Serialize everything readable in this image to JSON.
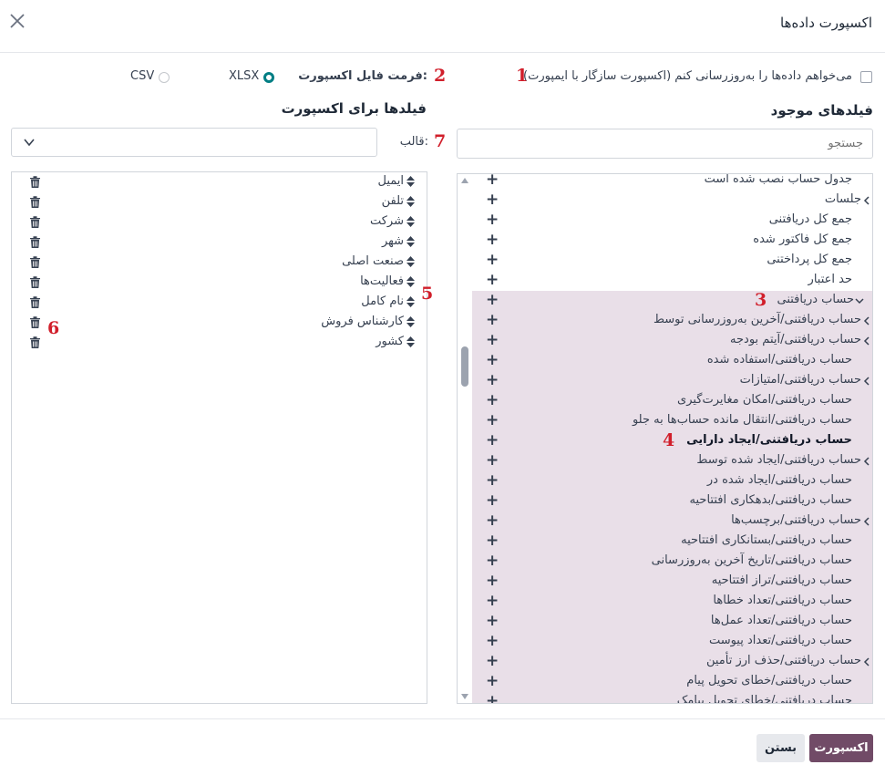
{
  "dialog": {
    "title": "اکسپورت داده‌ها"
  },
  "options": {
    "update_checkbox_label": "می‌خواهم داده‌ها را به‌روزرسانی کنم (اکسپورت سازگار با ایمپورت)",
    "format_label": "فرمت فایل اکسپورت:",
    "xlsx": "XLSX",
    "csv": "CSV"
  },
  "annotations": {
    "n1": "1",
    "n2": "2",
    "n3": "3",
    "n4": "4",
    "n5": "5",
    "n6": "6",
    "n7": "7"
  },
  "available": {
    "heading": "فیلدهای موجود",
    "search_placeholder": "جستجو",
    "rows": [
      {
        "label": "جدول حساب نصب شده است",
        "plus": "+",
        "chevron": false,
        "hl": false,
        "bold": false
      },
      {
        "label": "جلسات",
        "plus": "+",
        "chevron": "right",
        "hl": false,
        "bold": false
      },
      {
        "label": "جمع کل دریافتنی",
        "plus": "+",
        "chevron": false,
        "hl": false,
        "bold": false
      },
      {
        "label": "جمع کل فاکتور شده",
        "plus": "+",
        "chevron": false,
        "hl": false,
        "bold": false
      },
      {
        "label": "جمع کل پرداختنی",
        "plus": "+",
        "chevron": false,
        "hl": false,
        "bold": false
      },
      {
        "label": "حد اعتبار",
        "plus": "+",
        "chevron": false,
        "hl": false,
        "bold": false
      },
      {
        "label": "حساب دریافتنی",
        "plus": "+",
        "chevron": "down",
        "hl": true,
        "bold": false
      },
      {
        "label": "حساب دریافتنی/آخرین به‌روزرسانی توسط",
        "plus": "+",
        "chevron": "right",
        "hl": true,
        "bold": false
      },
      {
        "label": "حساب دریافتنی/آیتم بودجه",
        "plus": "+",
        "chevron": "right",
        "hl": true,
        "bold": false
      },
      {
        "label": "حساب دریافتنی/استفاده شده",
        "plus": "+",
        "chevron": false,
        "hl": true,
        "bold": false
      },
      {
        "label": "حساب دریافتنی/امتیازات",
        "plus": "+",
        "chevron": "right",
        "hl": true,
        "bold": false
      },
      {
        "label": "حساب دریافتنی/امکان مغایرت‌گیری",
        "plus": "+",
        "chevron": false,
        "hl": true,
        "bold": false
      },
      {
        "label": "حساب دریافتنی/انتقال مانده حساب‌ها به جلو",
        "plus": "+",
        "chevron": false,
        "hl": true,
        "bold": false
      },
      {
        "label": "حساب دریافتنی/ایجاد دارایی",
        "plus": "+",
        "chevron": false,
        "hl": true,
        "bold": true
      },
      {
        "label": "حساب دریافتنی/ایجاد شده توسط",
        "plus": "+",
        "chevron": "right",
        "hl": true,
        "bold": false
      },
      {
        "label": "حساب دریافتنی/ایجاد شده در",
        "plus": "+",
        "chevron": false,
        "hl": true,
        "bold": false
      },
      {
        "label": "حساب دریافتنی/بدهکاری افتتاحیه",
        "plus": "+",
        "chevron": false,
        "hl": true,
        "bold": false
      },
      {
        "label": "حساب دریافتنی/برچسب‌ها",
        "plus": "+",
        "chevron": "right",
        "hl": true,
        "bold": false
      },
      {
        "label": "حساب دریافتنی/بستانکاری افتتاحیه",
        "plus": "+",
        "chevron": false,
        "hl": true,
        "bold": false
      },
      {
        "label": "حساب دریافتنی/تاریخ آخرین به‌روزرسانی",
        "plus": "+",
        "chevron": false,
        "hl": true,
        "bold": false
      },
      {
        "label": "حساب دریافتنی/تراز افتتاحیه",
        "plus": "+",
        "chevron": false,
        "hl": true,
        "bold": false
      },
      {
        "label": "حساب دریافتنی/تعداد خطاها",
        "plus": "+",
        "chevron": false,
        "hl": true,
        "bold": false
      },
      {
        "label": "حساب دریافتنی/تعداد عمل‌ها",
        "plus": "+",
        "chevron": false,
        "hl": true,
        "bold": false
      },
      {
        "label": "حساب دریافتنی/تعداد پیوست",
        "plus": "+",
        "chevron": false,
        "hl": true,
        "bold": false
      },
      {
        "label": "حساب دریافتنی/حذف ارز تأمین",
        "plus": "+",
        "chevron": "right",
        "hl": true,
        "bold": false
      },
      {
        "label": "حساب دریافتنی/خطای تحویل پیام",
        "plus": "+",
        "chevron": false,
        "hl": true,
        "bold": false
      },
      {
        "label": "حساب دریافتنی/خطای تحویل پیامک",
        "plus": "+",
        "chevron": false,
        "hl": true,
        "bold": false
      }
    ]
  },
  "export_fields": {
    "heading": "فیلدها برای اکسپورت",
    "template_label": "قالب:",
    "items": [
      "ایمیل",
      "تلفن",
      "شرکت",
      "شهر",
      "صنعت اصلی",
      "فعالیت‌ها",
      "نام کامل",
      "کارشناس فروش",
      "کشور"
    ]
  },
  "footer": {
    "export_button": "اکسپورت",
    "close_button": "بستن"
  },
  "colors": {
    "primary": "#714b67",
    "teal": "#017e84",
    "highlight": "#e9dfe8",
    "annotation_red": "#d11f2b"
  }
}
